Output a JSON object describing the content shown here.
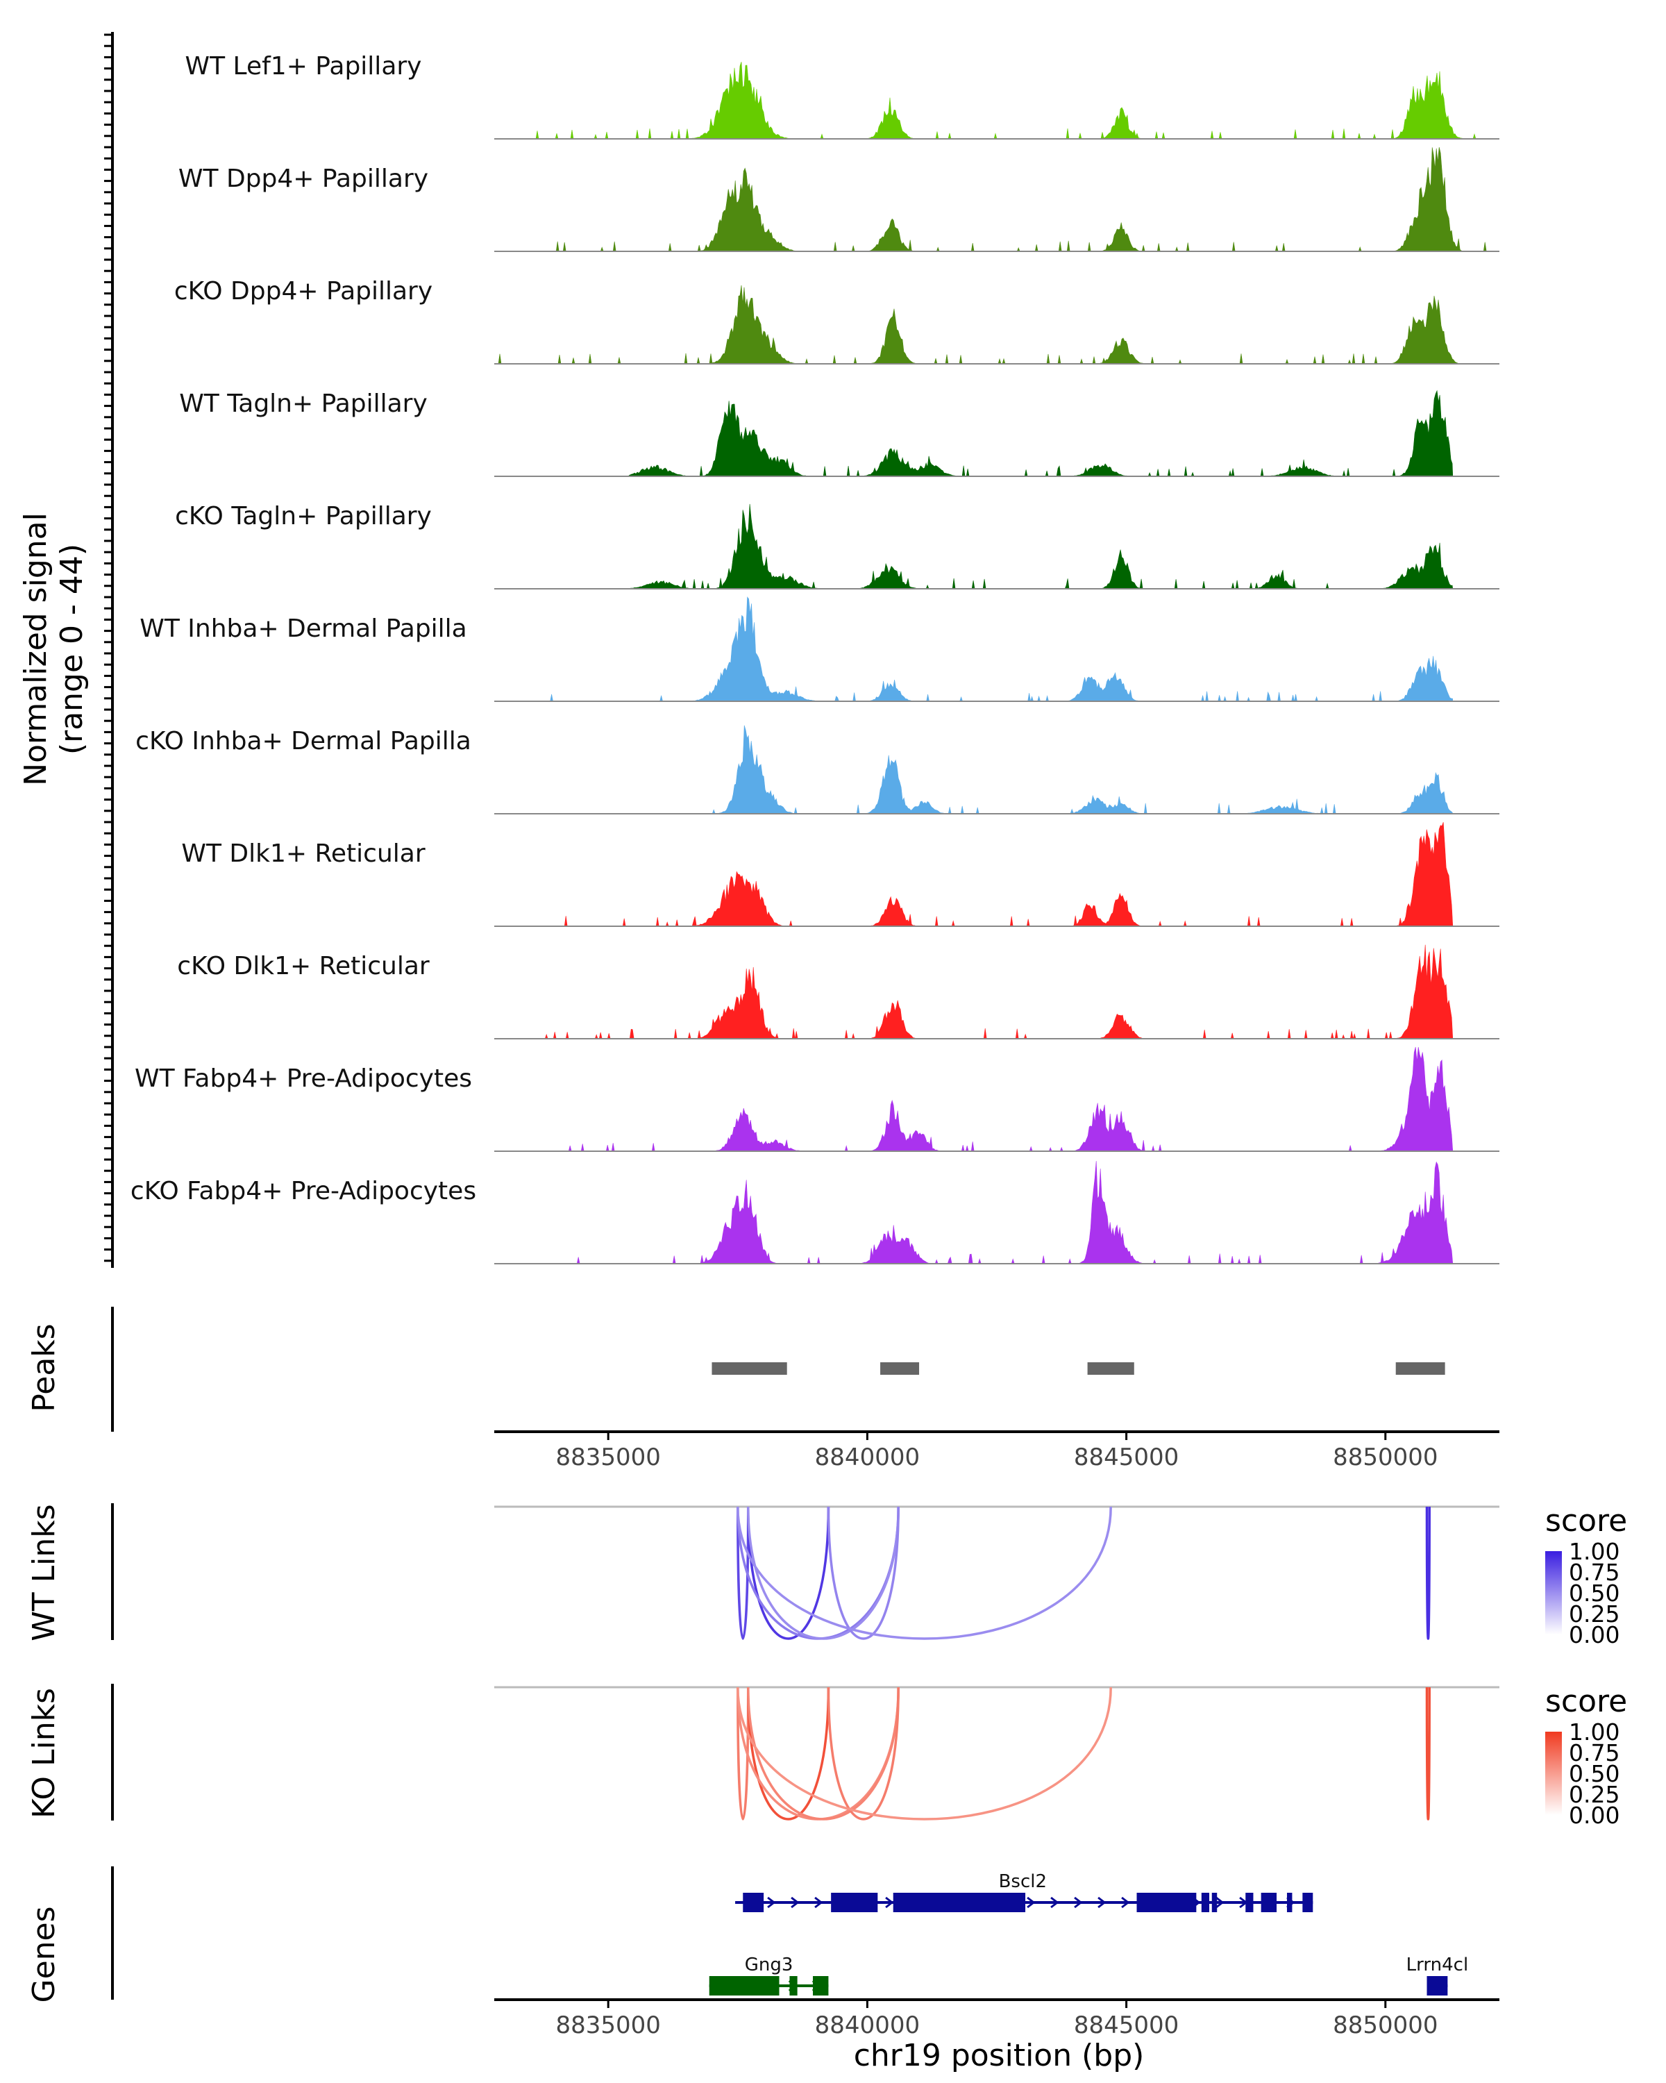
{
  "chart_data": {
    "type": "area",
    "chromosome": "chr19",
    "xlim": [
      8832800,
      8852200
    ],
    "x_ticks": [
      8835000,
      8840000,
      8845000,
      8850000
    ],
    "x_tick_labels": [
      "8835000",
      "8840000",
      "8845000",
      "8850000"
    ],
    "xlabel": "chr19 position (bp)",
    "coverage": {
      "ylabel": "Normalized signal",
      "ylabel_range": "(range 0 - 44)",
      "ylim": [
        0,
        44
      ],
      "tracks": [
        {
          "name": "WT Lef1+ Papillary",
          "color": "#66cc00",
          "extent": [
            8832800,
            8852200
          ],
          "peaks": [
            [
              8837550,
              30,
              300
            ],
            [
              8840450,
              14,
              150
            ],
            [
              8844900,
              11,
              130
            ],
            [
              8850550,
              17,
              130
            ],
            [
              8850950,
              28,
              170
            ]
          ]
        },
        {
          "name": "WT Dpp4+ Papillary",
          "color": "#4f8a10",
          "extent": [
            8833700,
            8852200
          ],
          "peaks": [
            [
              8837300,
              16,
              180
            ],
            [
              8837650,
              26,
              200
            ],
            [
              8838100,
              6,
              200
            ],
            [
              8840450,
              12,
              150
            ],
            [
              8844900,
              10,
              130
            ],
            [
              8850650,
              18,
              160
            ],
            [
              8851000,
              44,
              150
            ]
          ]
        },
        {
          "name": "cKO Dpp4+ Papillary",
          "color": "#4f8a10",
          "extent": [
            8832800,
            8852200
          ],
          "peaks": [
            [
              8837650,
              30,
              220
            ],
            [
              8838100,
              6,
              200
            ],
            [
              8840500,
              20,
              140
            ],
            [
              8844900,
              10,
              150
            ],
            [
              8850550,
              19,
              140
            ],
            [
              8850950,
              28,
              150
            ]
          ]
        },
        {
          "name": "WT Tagln+ Papillary",
          "color": "#006400",
          "extent": [
            8835400,
            8851300
          ],
          "peaks": [
            [
              8835900,
              4,
              250
            ],
            [
              8837300,
              24,
              150
            ],
            [
              8837700,
              18,
              250
            ],
            [
              8838300,
              6,
              200
            ],
            [
              8840500,
              10,
              200
            ],
            [
              8841200,
              5,
              200
            ],
            [
              8844500,
              5,
              200
            ],
            [
              8848400,
              4,
              250
            ],
            [
              8850700,
              25,
              140
            ],
            [
              8851050,
              30,
              130
            ]
          ]
        },
        {
          "name": "cKO Tagln+ Papillary",
          "color": "#006400",
          "extent": [
            8835400,
            8851300
          ],
          "peaks": [
            [
              8836000,
              3,
              250
            ],
            [
              8837700,
              32,
              200
            ],
            [
              8838400,
              5,
              250
            ],
            [
              8840400,
              9,
              200
            ],
            [
              8844900,
              14,
              130
            ],
            [
              8847900,
              6,
              150
            ],
            [
              8850500,
              8,
              200
            ],
            [
              8850950,
              16,
              150
            ]
          ]
        },
        {
          "name": "WT Inhba+ Dermal Papilla",
          "color": "#5aabe8",
          "extent": [
            8833800,
            8851300
          ],
          "peaks": [
            [
              8837350,
              12,
              250
            ],
            [
              8837700,
              34,
              180
            ],
            [
              8838400,
              4,
              250
            ],
            [
              8840450,
              8,
              150
            ],
            [
              8844300,
              10,
              150
            ],
            [
              8844800,
              12,
              150
            ],
            [
              8850650,
              10,
              150
            ],
            [
              8850950,
              14,
              150
            ]
          ]
        },
        {
          "name": "cKO Inhba+ Dermal Papilla",
          "color": "#5aabe8",
          "extent": [
            8835000,
            8851300
          ],
          "peaks": [
            [
              8837700,
              30,
              180
            ],
            [
              8838100,
              8,
              180
            ],
            [
              8840450,
              24,
              150
            ],
            [
              8841100,
              5,
              150
            ],
            [
              8844400,
              6,
              180
            ],
            [
              8844900,
              4,
              150
            ],
            [
              8848000,
              3,
              300
            ],
            [
              8850700,
              10,
              150
            ],
            [
              8851000,
              13,
              120
            ]
          ]
        },
        {
          "name": "WT Dlk1+ Reticular",
          "color": "#ff2020",
          "extent": [
            8833700,
            8851300
          ],
          "peaks": [
            [
              8837400,
              16,
              250
            ],
            [
              8837800,
              14,
              200
            ],
            [
              8840500,
              12,
              150
            ],
            [
              8844300,
              10,
              120
            ],
            [
              8844900,
              13,
              130
            ],
            [
              8850700,
              34,
              150
            ],
            [
              8851050,
              42,
              140
            ]
          ]
        },
        {
          "name": "cKO Dlk1+ Reticular",
          "color": "#ff2020",
          "extent": [
            8833700,
            8851300
          ],
          "peaks": [
            [
              8837300,
              12,
              200
            ],
            [
              8837750,
              26,
              170
            ],
            [
              8840500,
              16,
              150
            ],
            [
              8844900,
              10,
              150
            ],
            [
              8850700,
              30,
              150
            ],
            [
              8851050,
              32,
              150
            ]
          ]
        },
        {
          "name": "WT Fabp4+ Pre-Adipocytes",
          "color": "#aa33ee",
          "extent": [
            8833700,
            8851300
          ],
          "peaks": [
            [
              8837600,
              16,
              180
            ],
            [
              8838200,
              4,
              200
            ],
            [
              8840500,
              18,
              140
            ],
            [
              8841000,
              8,
              140
            ],
            [
              8844450,
              18,
              150
            ],
            [
              8844900,
              14,
              150
            ],
            [
              8850500,
              14,
              200
            ],
            [
              8850650,
              32,
              120
            ],
            [
              8851050,
              40,
              120
            ]
          ]
        },
        {
          "name": "cKO Fabp4+ Pre-Adipocytes",
          "color": "#aa33ee",
          "extent": [
            8833700,
            8851300
          ],
          "peaks": [
            [
              8837350,
              14,
              200
            ],
            [
              8837700,
              26,
              180
            ],
            [
              8840400,
              12,
              180
            ],
            [
              8840800,
              8,
              150
            ],
            [
              8844450,
              34,
              110
            ],
            [
              8844800,
              14,
              180
            ],
            [
              8850600,
              20,
              250
            ],
            [
              8851000,
              30,
              150
            ]
          ]
        }
      ]
    },
    "peaks": {
      "label": "Peaks",
      "color": "#666666",
      "regions": [
        [
          8837000,
          8838450
        ],
        [
          8840250,
          8841000
        ],
        [
          8844250,
          8845150
        ],
        [
          8850200,
          8851150
        ]
      ]
    },
    "links": [
      {
        "label": "WT Links",
        "legend_title": "score",
        "legend_ticks": [
          "1.00",
          "0.75",
          "0.50",
          "0.25",
          "0.00"
        ],
        "color_high": "#3a1ee0",
        "color_low": "#ffffff",
        "arcs": [
          {
            "start": 8837500,
            "end": 8837700,
            "score": 0.75
          },
          {
            "start": 8837700,
            "end": 8839250,
            "score": 0.85
          },
          {
            "start": 8837500,
            "end": 8840600,
            "score": 0.45
          },
          {
            "start": 8837700,
            "end": 8840600,
            "score": 0.35
          },
          {
            "start": 8839250,
            "end": 8840600,
            "score": 0.4
          },
          {
            "start": 8837500,
            "end": 8844700,
            "score": 0.35
          },
          {
            "start": 8850800,
            "end": 8850850,
            "score": 0.9
          }
        ]
      },
      {
        "label": "KO Links",
        "legend_title": "score",
        "legend_ticks": [
          "1.00",
          "0.75",
          "0.50",
          "0.25",
          "0.00"
        ],
        "color_high": "#f03a20",
        "color_low": "#ffffff",
        "arcs": [
          {
            "start": 8837500,
            "end": 8837700,
            "score": 0.55
          },
          {
            "start": 8837700,
            "end": 8839250,
            "score": 0.85
          },
          {
            "start": 8837500,
            "end": 8840600,
            "score": 0.45
          },
          {
            "start": 8837700,
            "end": 8840600,
            "score": 0.5
          },
          {
            "start": 8839250,
            "end": 8840600,
            "score": 0.55
          },
          {
            "start": 8837500,
            "end": 8844700,
            "score": 0.4
          },
          {
            "start": 8850800,
            "end": 8850850,
            "score": 0.85
          }
        ]
      }
    ],
    "genes": {
      "label": "Genes",
      "items": [
        {
          "name": "Bscl2",
          "strand": "+",
          "row": 0,
          "color": "#0a0a96",
          "start": 8837450,
          "end": 8848600,
          "exons": [
            [
              8837600,
              8838000
            ],
            [
              8839300,
              8840200
            ],
            [
              8840500,
              8843050
            ],
            [
              8845200,
              8846350
            ],
            [
              8846450,
              8846600
            ],
            [
              8846650,
              8846750
            ],
            [
              8847300,
              8847450
            ],
            [
              8847600,
              8847900
            ],
            [
              8848100,
              8848200
            ],
            [
              8848400,
              8848600
            ]
          ]
        },
        {
          "name": "Gng3",
          "strand": "+",
          "row": 1,
          "color": "#006400",
          "start": 8836950,
          "end": 8839250,
          "exons": [
            [
              8836950,
              8838300
            ],
            [
              8838500,
              8838650
            ],
            [
              8838950,
              8839250
            ]
          ]
        },
        {
          "name": "Lrrn4cl",
          "strand": "+",
          "row": 1,
          "color": "#0a0a96",
          "start": 8850800,
          "end": 8851200,
          "exons": [
            [
              8850800,
              8851200
            ]
          ]
        }
      ]
    }
  }
}
